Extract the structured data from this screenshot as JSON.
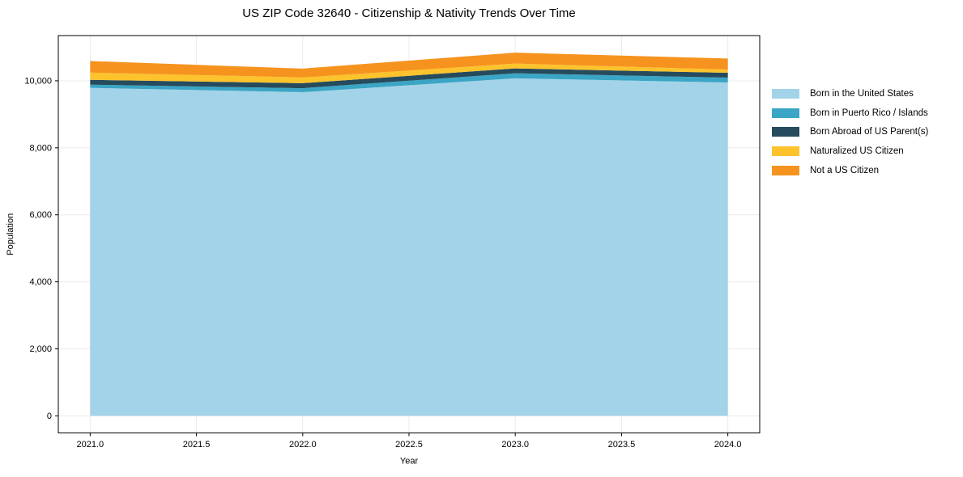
{
  "chart_data": {
    "type": "area",
    "stacked": true,
    "title": "US ZIP Code 32640 - Citizenship & Nativity Trends Over Time",
    "xlabel": "Year",
    "ylabel": "Population",
    "x": [
      2021,
      2022,
      2023,
      2024
    ],
    "series": [
      {
        "name": "Born in the United States",
        "color": "#a3d3e9",
        "values": [
          9790,
          9660,
          10075,
          9950
        ]
      },
      {
        "name": "Born in Puerto Rico / Islands",
        "color": "#3aa5c4",
        "values": [
          95,
          120,
          150,
          145
        ]
      },
      {
        "name": "Born Abroad of US Parent(s)",
        "color": "#264b5c",
        "values": [
          145,
          150,
          145,
          145
        ]
      },
      {
        "name": "Naturalized US Citizen",
        "color": "#fcc32d",
        "values": [
          215,
          170,
          145,
          95
        ]
      },
      {
        "name": "Not a US Citizen",
        "color": "#f6931f",
        "values": [
          345,
          265,
          325,
          330
        ]
      }
    ],
    "totals": [
      10590,
      10365,
      10840,
      10665
    ],
    "xlim": [
      2020.85,
      2024.15
    ],
    "ylim": [
      -510,
      11350
    ],
    "xticks": {
      "values": [
        2021,
        2021.5,
        2022,
        2022.5,
        2023,
        2023.5,
        2024
      ],
      "labels": [
        "2021.0",
        "2021.5",
        "2022.0",
        "2022.5",
        "2023.0",
        "2023.5",
        "2024.0"
      ]
    },
    "yticks": {
      "values": [
        0,
        2000,
        4000,
        6000,
        8000,
        10000
      ],
      "labels": [
        "0",
        "2,000",
        "4,000",
        "6,000",
        "8,000",
        "10,000"
      ]
    },
    "grid": true,
    "grid_color": "#ebebeb",
    "spine_color": "#000000",
    "legend_position": "outside-right"
  }
}
